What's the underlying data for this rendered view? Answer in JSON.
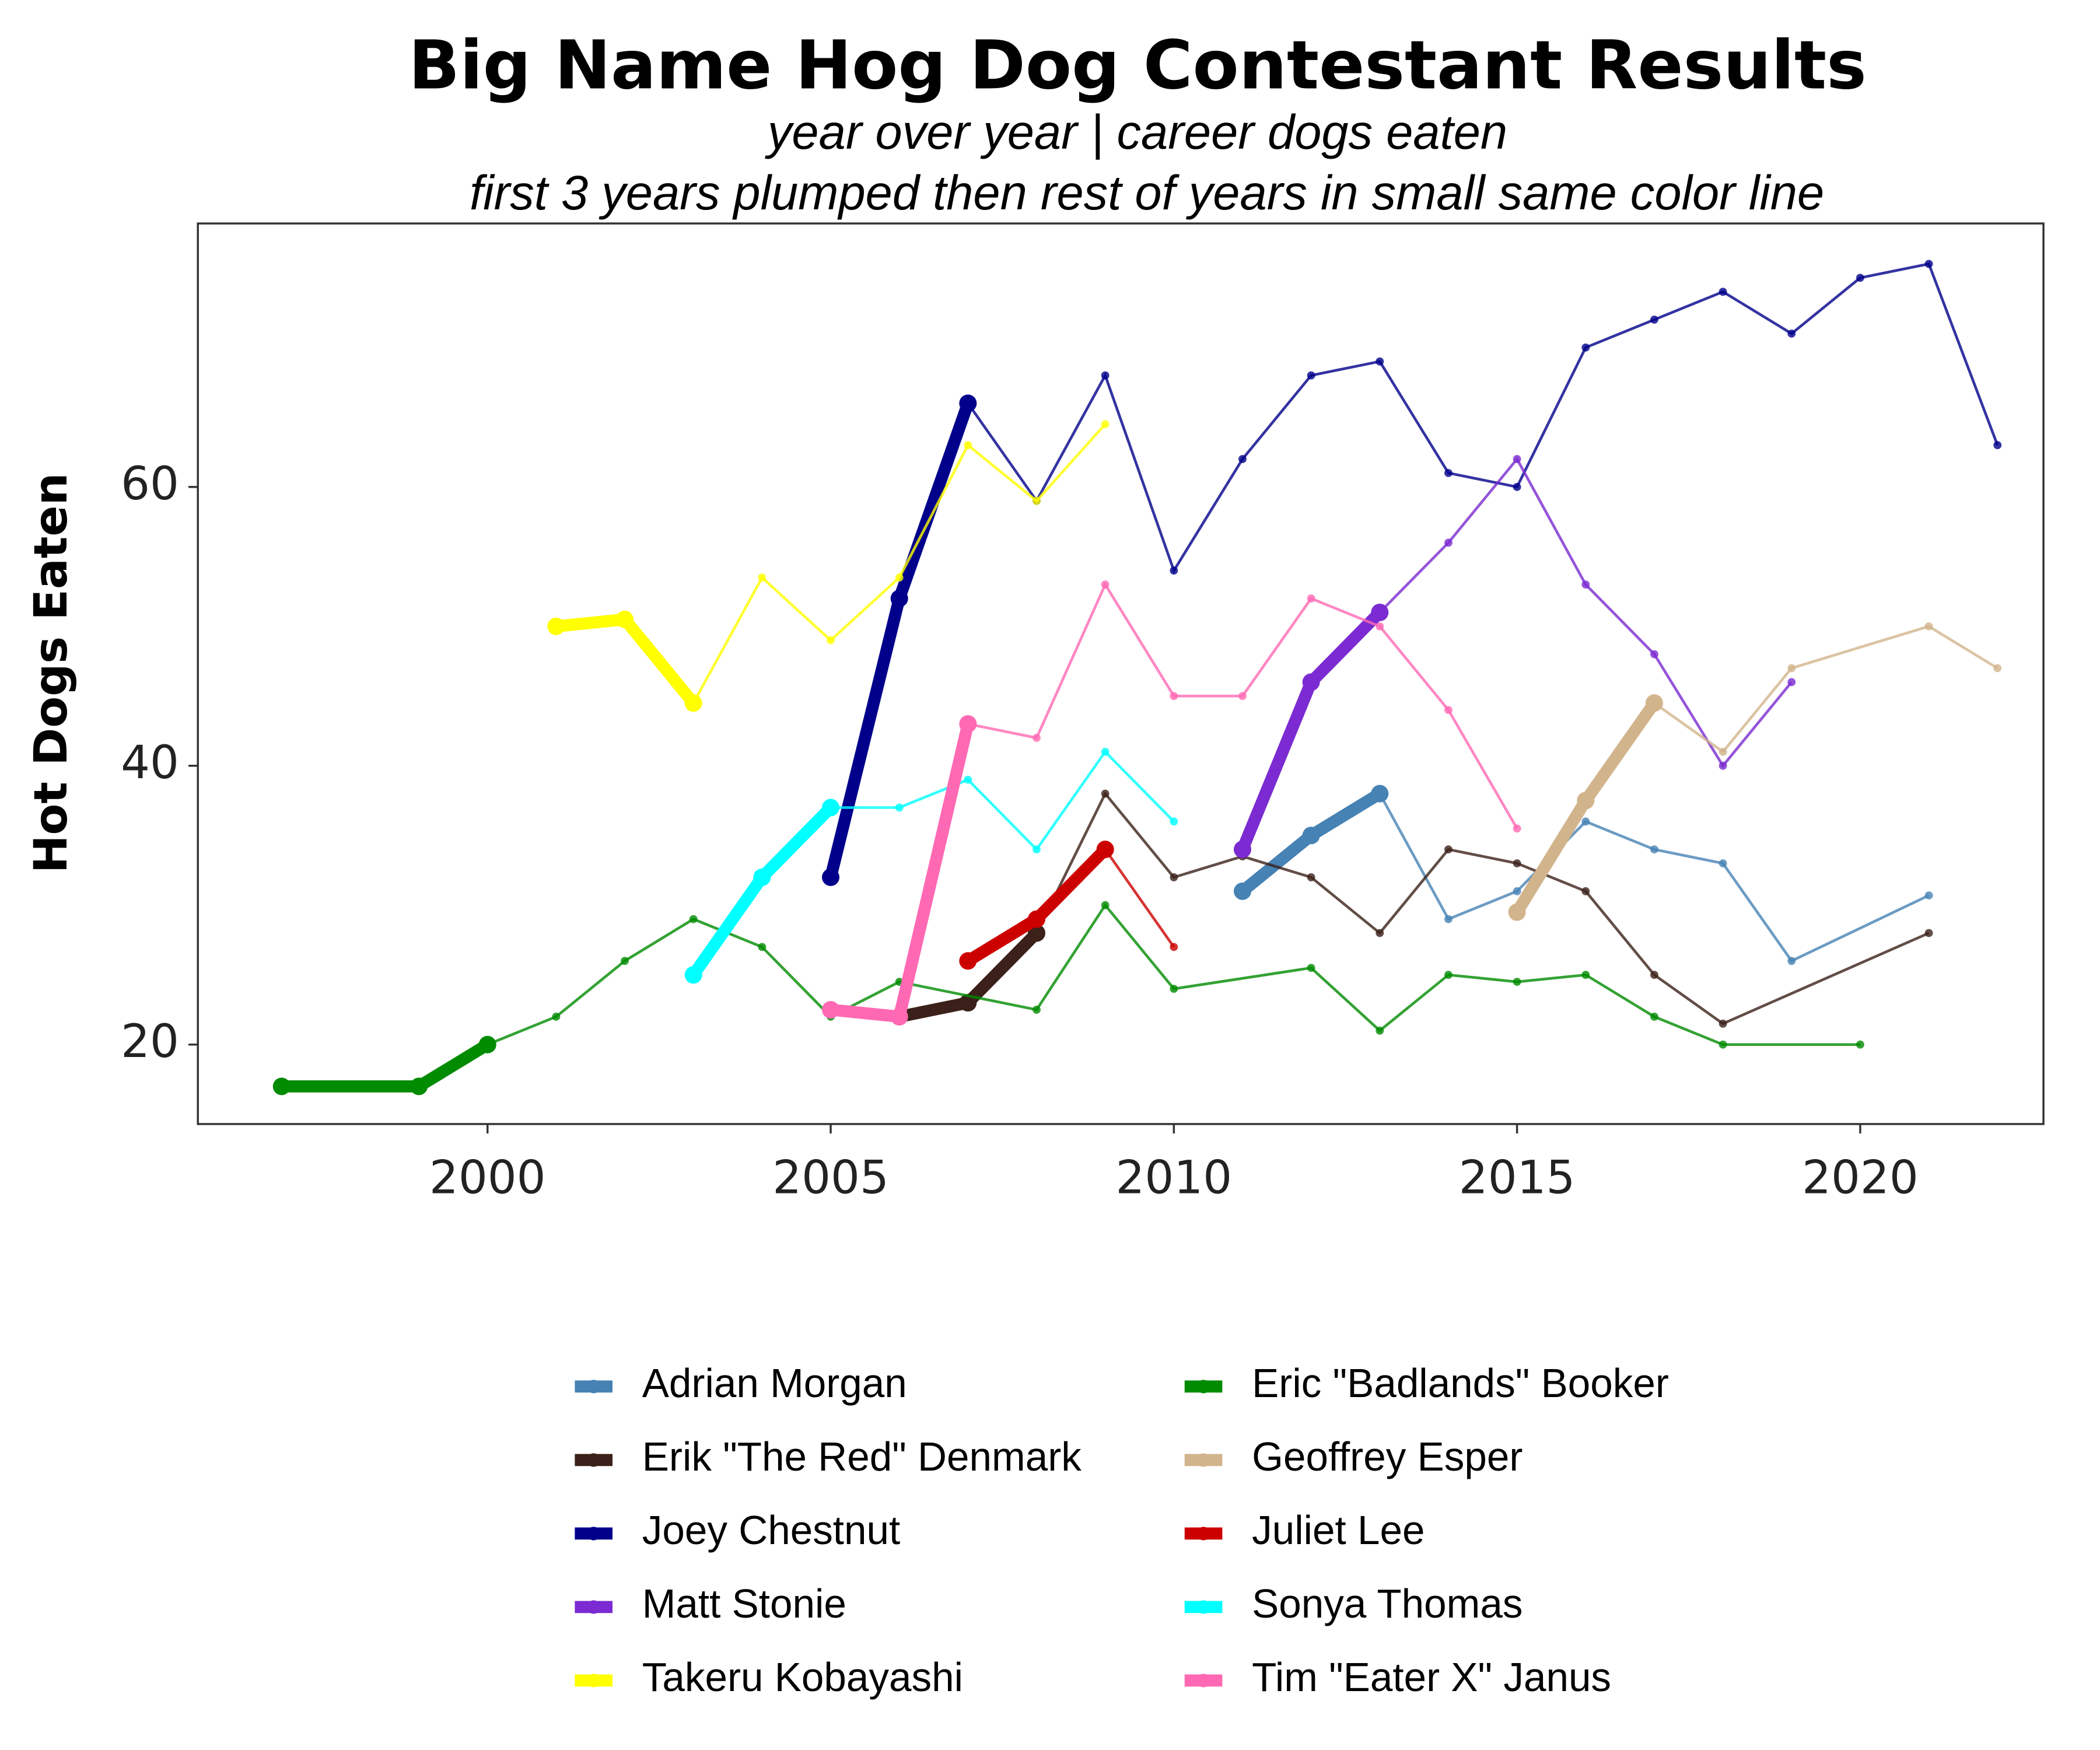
{
  "chart_data": {
    "type": "line",
    "title": "Big Name Hog Dog Contestant Results",
    "subtitle": [
      "year over year | career dogs eaten",
      "first 3 years plumped then rest of years in small same color line"
    ],
    "y_label": "Hot Dogs Eaten",
    "xlim": [
      1995.78,
      2022.67
    ],
    "xticks": [
      2000,
      2005,
      2010,
      2015,
      2020
    ],
    "ylim": [
      14.3,
      78.9
    ],
    "yticks": [
      20,
      40,
      60
    ],
    "grid": false,
    "series": [
      {
        "name": "Adrian Morgan",
        "color": "#4682b4",
        "x": [
          2011,
          2012,
          2013,
          2014,
          2015,
          2016,
          2017,
          2018,
          2019,
          2021
        ],
        "values": [
          31,
          35,
          38,
          29,
          31,
          36,
          34,
          33,
          26,
          30.7
        ]
      },
      {
        "name": "Erik \"The Red\" Denmark",
        "color": "#3b2119",
        "x": [
          2006,
          2007,
          2008,
          2009,
          2010,
          2011,
          2012,
          2013,
          2014,
          2015,
          2016,
          2017,
          2018,
          2021
        ],
        "values": [
          22,
          23,
          28,
          38,
          32,
          33.5,
          32,
          28,
          34,
          33,
          31,
          25,
          21.5,
          28
        ]
      },
      {
        "name": "Joey Chestnut",
        "color": "#00008b",
        "x": [
          2005,
          2006,
          2007,
          2008,
          2009,
          2010,
          2011,
          2012,
          2013,
          2014,
          2015,
          2016,
          2017,
          2018,
          2019,
          2020,
          2021,
          2022
        ],
        "values": [
          32,
          52,
          66,
          59,
          68,
          54,
          62,
          68,
          69,
          61,
          60,
          70,
          72,
          74,
          71,
          75,
          76,
          63
        ]
      },
      {
        "name": "Matt Stonie",
        "color": "#7b2bd1",
        "x": [
          2011,
          2012,
          2013,
          2014,
          2015,
          2016,
          2017,
          2018,
          2019
        ],
        "values": [
          34,
          46,
          51,
          56,
          62,
          53,
          48,
          40,
          46
        ]
      },
      {
        "name": "Takeru Kobayashi",
        "color": "#ffff00",
        "x": [
          2001,
          2002,
          2003,
          2004,
          2005,
          2006,
          2007,
          2008,
          2009
        ],
        "values": [
          50,
          50.5,
          44.5,
          53.5,
          49,
          53.5,
          63,
          59,
          64.5
        ]
      },
      {
        "name": "Eric \"Badlands\" Booker",
        "color": "#008b00",
        "x": [
          1997,
          1999,
          2000,
          2001,
          2002,
          2003,
          2004,
          2005,
          2006,
          2008,
          2009,
          2010,
          2012,
          2013,
          2014,
          2015,
          2016,
          2017,
          2018,
          2020
        ],
        "values": [
          17,
          17,
          20,
          22,
          26,
          29,
          27,
          22,
          24.5,
          22.5,
          30,
          24,
          25.5,
          21,
          25,
          24.5,
          25,
          22,
          20,
          20
        ]
      },
      {
        "name": "Geoffrey Esper",
        "color": "#d2b48c",
        "x": [
          2015,
          2016,
          2017,
          2018,
          2019,
          2021,
          2022
        ],
        "values": [
          29.5,
          37.5,
          44.5,
          41,
          47,
          50,
          47
        ]
      },
      {
        "name": "Juliet Lee",
        "color": "#cd0000",
        "x": [
          2007,
          2008,
          2009,
          2010
        ],
        "values": [
          26,
          29,
          34,
          27
        ]
      },
      {
        "name": "Sonya Thomas",
        "color": "#00ffff",
        "x": [
          2003,
          2004,
          2005,
          2006,
          2007,
          2008,
          2009,
          2010
        ],
        "values": [
          25,
          32,
          37,
          37,
          39,
          34,
          41,
          36
        ]
      },
      {
        "name": "Tim \"Eater X\" Janus",
        "color": "#ff69b4",
        "x": [
          2005,
          2006,
          2007,
          2008,
          2009,
          2010,
          2011,
          2012,
          2013,
          2014,
          2015
        ],
        "values": [
          22.5,
          22,
          43,
          42,
          53,
          45,
          45,
          52,
          50,
          44,
          35.5
        ]
      }
    ]
  }
}
